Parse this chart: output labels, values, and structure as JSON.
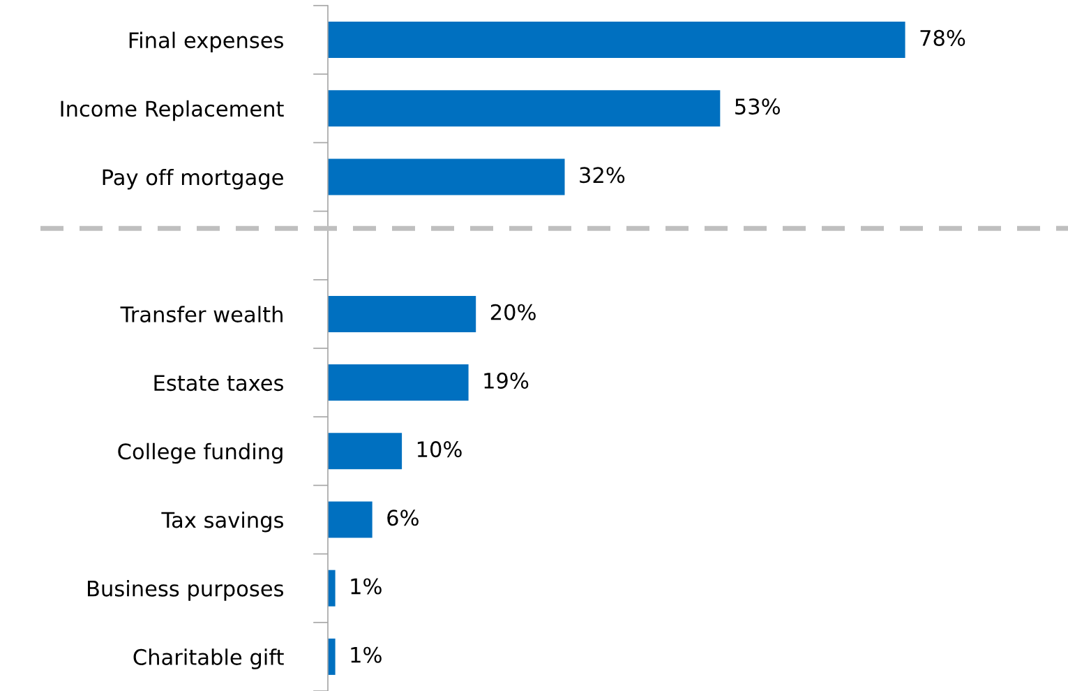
{
  "chart_data": {
    "type": "bar",
    "orientation": "horizontal",
    "categories": [
      "Final expenses",
      "Income Replacement",
      "Pay off mortgage",
      null,
      "Transfer wealth",
      "Estate taxes",
      "College funding",
      "Tax savings",
      "Business purposes",
      "Charitable gift"
    ],
    "values": [
      78,
      53,
      32,
      null,
      20,
      19,
      10,
      6,
      1,
      1
    ],
    "value_labels": [
      "78%",
      "53%",
      "32%",
      null,
      "20%",
      "19%",
      "10%",
      "6%",
      "1%",
      "1%"
    ],
    "color": "#0070c0",
    "tick_labels": "y"
  }
}
